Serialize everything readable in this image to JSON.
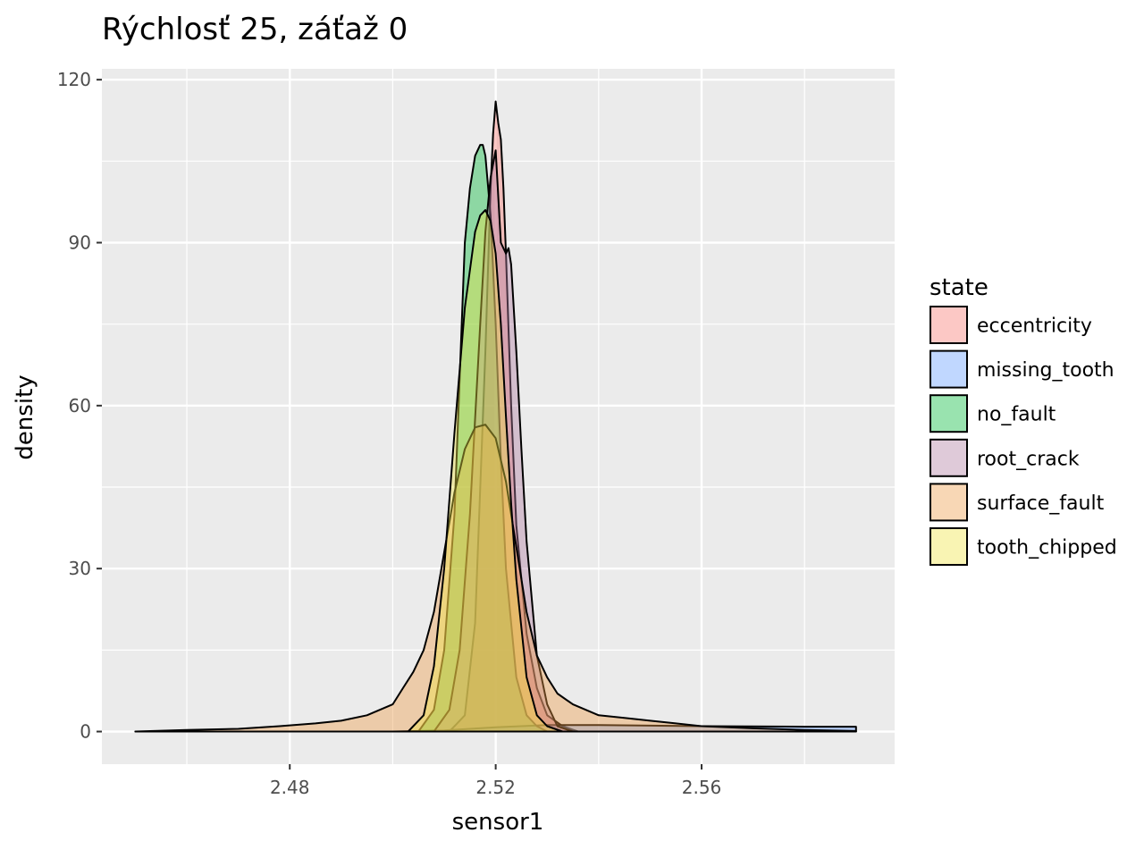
{
  "chart_data": {
    "type": "area",
    "title": "Rýchlosť 25, záťaž 0",
    "xlabel": "sensor1",
    "ylabel": "density",
    "xlim": [
      2.4435,
      2.5975
    ],
    "ylim": [
      -6,
      122
    ],
    "xticks": [
      2.48,
      2.52,
      2.56
    ],
    "xtick_labels": [
      "2.48",
      "2.52",
      "2.56"
    ],
    "yticks": [
      0,
      30,
      60,
      90,
      120
    ],
    "ytick_labels": [
      "0",
      "30",
      "60",
      "90",
      "120"
    ],
    "grid": true,
    "legend": {
      "title": "state",
      "position": "right"
    },
    "series": [
      {
        "name": "eccentricity",
        "color": "#F8766D",
        "x": [
          2.511,
          2.514,
          2.516,
          2.518,
          2.519,
          2.5195,
          2.52,
          2.5205,
          2.521,
          2.5215,
          2.522,
          2.523,
          2.524,
          2.526,
          2.528,
          2.53,
          2.533,
          2.536
        ],
        "y": [
          0,
          3,
          20,
          70,
          100,
          110,
          116,
          112,
          109,
          100,
          88,
          60,
          38,
          18,
          8,
          3,
          1,
          0
        ]
      },
      {
        "name": "missing_tooth",
        "color": "#619CFF",
        "x": [
          2.45,
          2.5,
          2.51,
          2.515,
          2.52,
          2.525,
          2.53,
          2.54,
          2.56,
          2.58,
          2.59
        ],
        "y": [
          0,
          0,
          0.2,
          0.5,
          0.8,
          1.0,
          1.2,
          1.2,
          1.0,
          0.9,
          0.9
        ]
      },
      {
        "name": "no_fault",
        "color": "#00BA38",
        "x": [
          2.505,
          2.508,
          2.51,
          2.512,
          2.513,
          2.514,
          2.515,
          2.516,
          2.517,
          2.5175,
          2.518,
          2.519,
          2.52,
          2.521,
          2.522,
          2.524,
          2.526,
          2.528,
          2.53
        ],
        "y": [
          0,
          4,
          15,
          40,
          65,
          90,
          100,
          106,
          108,
          108,
          106,
          95,
          75,
          50,
          30,
          10,
          3,
          1,
          0
        ]
      },
      {
        "name": "root_crack",
        "color": "#B07AA1",
        "x": [
          2.508,
          2.511,
          2.513,
          2.515,
          2.517,
          2.518,
          2.519,
          2.52,
          2.521,
          2.522,
          2.5225,
          2.523,
          2.524,
          2.525,
          2.526,
          2.528,
          2.53,
          2.532,
          2.535
        ],
        "y": [
          0,
          4,
          15,
          40,
          75,
          92,
          102,
          107,
          90,
          88,
          89,
          86,
          70,
          52,
          35,
          14,
          5,
          1,
          0
        ]
      },
      {
        "name": "surface_fault",
        "color": "#EE9A45",
        "x": [
          2.45,
          2.46,
          2.47,
          2.478,
          2.485,
          2.49,
          2.495,
          2.5,
          2.502,
          2.504,
          2.506,
          2.508,
          2.51,
          2.512,
          2.514,
          2.516,
          2.518,
          2.52,
          2.522,
          2.524,
          2.526,
          2.528,
          2.53,
          2.532,
          2.535,
          2.54,
          2.545,
          2.55,
          2.555,
          2.56,
          2.57,
          2.58,
          2.59
        ],
        "y": [
          0,
          0.3,
          0.5,
          1.0,
          1.5,
          2.0,
          3.0,
          5.0,
          8.0,
          11.0,
          15.0,
          22.0,
          33.0,
          44.0,
          52.0,
          56.0,
          56.5,
          54.0,
          46.0,
          34.0,
          22.0,
          14.0,
          10.0,
          7.0,
          5.0,
          3.0,
          2.5,
          2.0,
          1.5,
          1.0,
          0.6,
          0.3,
          0.1
        ]
      },
      {
        "name": "tooth_chipped",
        "color": "#F0E442",
        "x": [
          2.503,
          2.506,
          2.508,
          2.51,
          2.512,
          2.514,
          2.516,
          2.517,
          2.518,
          2.519,
          2.52,
          2.521,
          2.522,
          2.523,
          2.524,
          2.526,
          2.528,
          2.53,
          2.533
        ],
        "y": [
          0,
          3,
          12,
          30,
          55,
          78,
          92,
          95,
          96,
          94,
          88,
          75,
          58,
          42,
          28,
          10,
          3,
          1,
          0
        ]
      }
    ]
  }
}
